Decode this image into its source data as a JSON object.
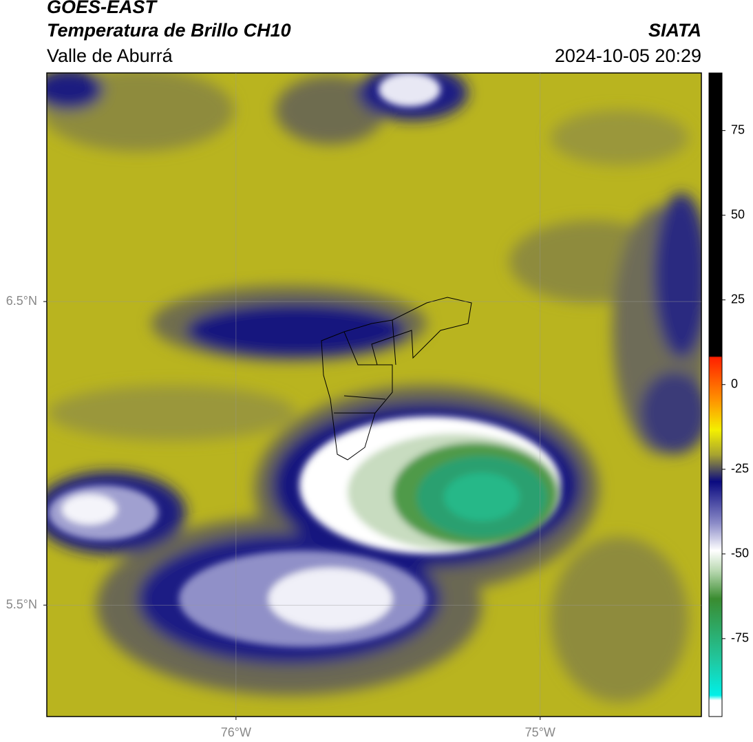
{
  "chart_data": {
    "type": "map",
    "title": "GOES-EAST",
    "subtitle": "Temperatura de Brillo CH10",
    "region": "Valle de Aburrá",
    "source": "SIATA",
    "datetime": "2024-10-05 20:29",
    "xlim": [
      -76.622,
      -74.47
    ],
    "ylim": [
      5.133,
      7.253
    ],
    "xticks": [
      {
        "value": -76,
        "label": "76°W"
      },
      {
        "value": -75,
        "label": "75°W"
      }
    ],
    "yticks": [
      {
        "value": 6.5,
        "label": "6.5°N"
      },
      {
        "value": 5.5,
        "label": "5.5°N"
      }
    ],
    "grid": true,
    "colorbar": {
      "clim": [
        -98,
        92
      ],
      "ticks": [
        75,
        50,
        25,
        0,
        -25,
        -50,
        -75
      ]
    }
  }
}
